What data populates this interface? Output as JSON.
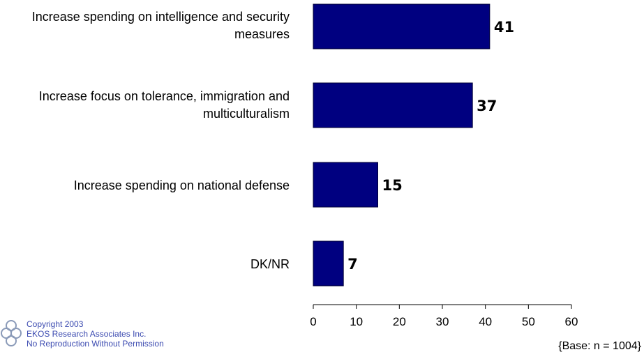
{
  "chart_data": {
    "type": "bar",
    "orientation": "horizontal",
    "categories": [
      "Increase spending on intelligence and security measures",
      "Increase focus on tolerance, immigration and multiculturalism",
      "Increase spending on national defense",
      "DK/NR"
    ],
    "values": [
      41,
      37,
      15,
      7
    ],
    "xlim": [
      0,
      60
    ],
    "ticks": [
      "0",
      "10",
      "20",
      "30",
      "40",
      "50",
      "60"
    ],
    "bar_color": "#000080",
    "grid": false,
    "title": "",
    "xlabel": "",
    "ylabel": ""
  },
  "labels": {
    "cat0_line1": "Increase spending on intelligence and security",
    "cat0_line2": "measures",
    "cat1_line1": "Increase focus on tolerance, immigration and",
    "cat1_line2": "multiculturalism",
    "cat2_line1": "Increase spending on national defense",
    "cat3_line1": "DK/NR"
  },
  "footer": {
    "copyright": "Copyright 2003",
    "company": "EKOS Research Associates Inc.",
    "notice": "No Reproduction Without Permission"
  },
  "base_note": "{Base: n = 1004}",
  "colors": {
    "bar": "#000080",
    "footer_text": "#3b4ab0"
  },
  "logo_icon": "ekos-logo-icon"
}
